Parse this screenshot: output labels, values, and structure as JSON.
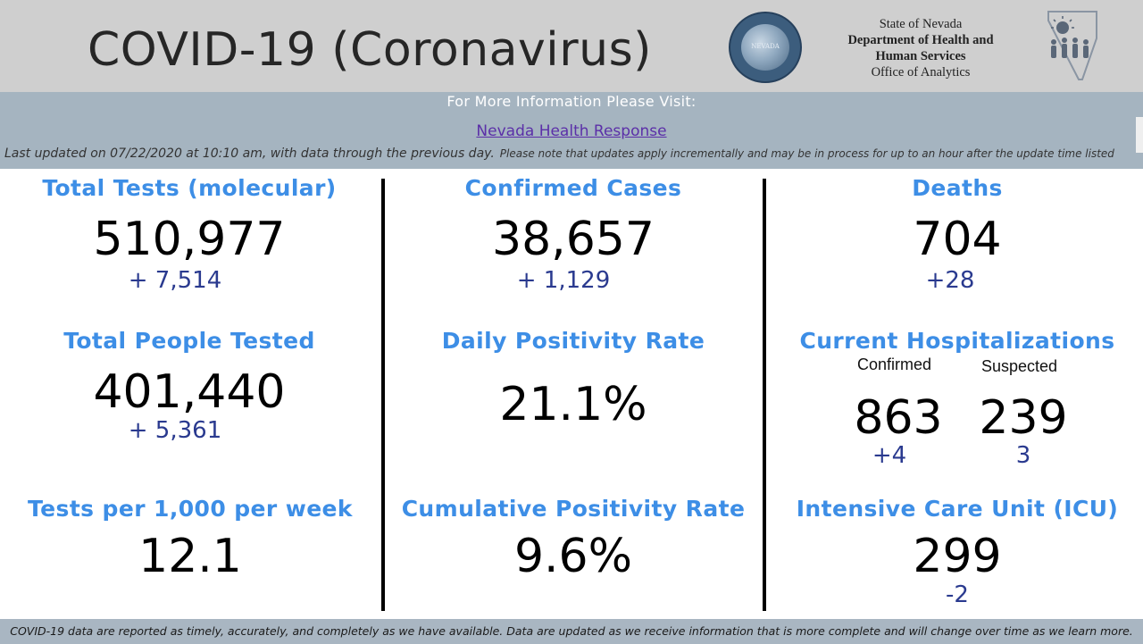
{
  "header": {
    "title": "COVID-19 (Coronavirus)",
    "seal_text": "NEVADA",
    "org_lines": [
      "State of Nevada",
      "Department of Health and",
      "Human Services",
      "Office of Analytics"
    ],
    "logo_icon": "dhhs-logo-icon"
  },
  "info": {
    "visit_text": "For More Information Please Visit:",
    "link_text": "Nevada Health Response",
    "updated_text": "Last updated on 07/22/2020 at 10:10 am, with data through the previous day.",
    "updated_note": "Please note that updates apply incrementally and may be in process for up to an hour after the update time listed"
  },
  "metrics": {
    "total_tests": {
      "label": "Total Tests (molecular)",
      "value": "510,977",
      "delta": "+ 7,514"
    },
    "confirmed_cases": {
      "label": "Confirmed Cases",
      "value": "38,657",
      "delta": "+ 1,129"
    },
    "deaths": {
      "label": "Deaths",
      "value": "704",
      "delta": "+28"
    },
    "total_people_tested": {
      "label": "Total People Tested",
      "value": "401,440",
      "delta": "+ 5,361"
    },
    "daily_positivity": {
      "label": "Daily Positivity Rate",
      "value": "21.1%"
    },
    "hospitalizations": {
      "label": "Current Hospitalizations",
      "confirmed_label": "Confirmed",
      "suspected_label": "Suspected",
      "confirmed_value": "863",
      "confirmed_delta": "+4",
      "suspected_value": "239",
      "suspected_delta": "3"
    },
    "tests_per_1000": {
      "label": "Tests per 1,000 per week",
      "value": "12.1"
    },
    "cumulative_positivity": {
      "label": "Cumulative Positivity Rate",
      "value": "9.6%"
    },
    "icu": {
      "label": "Intensive Care Unit (ICU)",
      "value": "299",
      "delta": "-2"
    }
  },
  "footer": {
    "text": "COVID-19 data are reported as timely, accurately, and completely as we have available.  Data are updated as we receive information that is more complete and will change over time as we learn more."
  },
  "colors": {
    "label_blue": "#3d8ee6",
    "delta_navy": "#2a3a8f",
    "header_gray": "#cfcfcf",
    "band_blue_gray": "#a5b4c0",
    "link_purple": "#5b2fa8"
  }
}
